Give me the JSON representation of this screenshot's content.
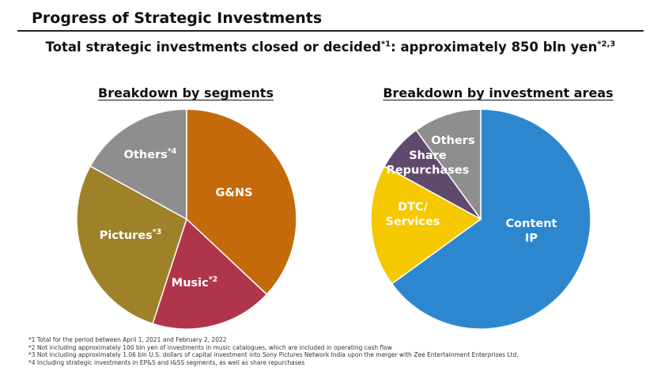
{
  "header": {
    "title": "Progress of Strategic Investments",
    "subtitle_main": "Total strategic investments closed or decided",
    "subtitle_sup1": "*1",
    "subtitle_rest": ": approximately 850 bln yen",
    "subtitle_sup2": "*2,3"
  },
  "chart_data": [
    {
      "type": "pie",
      "title": "Breakdown by segments",
      "slices": [
        {
          "label": "G&NS",
          "marker": "",
          "value": 37,
          "color": "#c46a0a"
        },
        {
          "label": "Music",
          "marker": "*2",
          "value": 18,
          "color": "#b0354a"
        },
        {
          "label": "Pictures",
          "marker": "*3",
          "value": 28,
          "color": "#9e8129"
        },
        {
          "label": "Others",
          "marker": "*4",
          "value": 17,
          "color": "#8e8e8e"
        }
      ]
    },
    {
      "type": "pie",
      "title": "Breakdown by investment areas",
      "slices": [
        {
          "label": "Content IP",
          "marker": "",
          "value": 65,
          "color": "#2d87cf"
        },
        {
          "label": "DTC/ Services",
          "marker": "",
          "value": 18,
          "color": "#f5c800"
        },
        {
          "label": "Share Repurchases",
          "marker": "",
          "value": 7,
          "color": "#5f4a6e"
        },
        {
          "label": "Others",
          "marker": "",
          "value": 10,
          "color": "#8e8e8e"
        }
      ]
    }
  ],
  "footnotes": [
    "*1 Total for the period between April 1, 2021 and February 2, 2022",
    "*2 Not including approximately 100 bln yen of investments in music catalogues, which are included in operating cash flow",
    "*3 Not including approximately 1.06 bln U.S. dollars of capital investment into Sony Pictures Network India upon the merger with Zee Entertainment Enterprises Ltd.",
    "*4 Including strategic investments in EP&S and I&SS segments, as well as share repurchases"
  ]
}
